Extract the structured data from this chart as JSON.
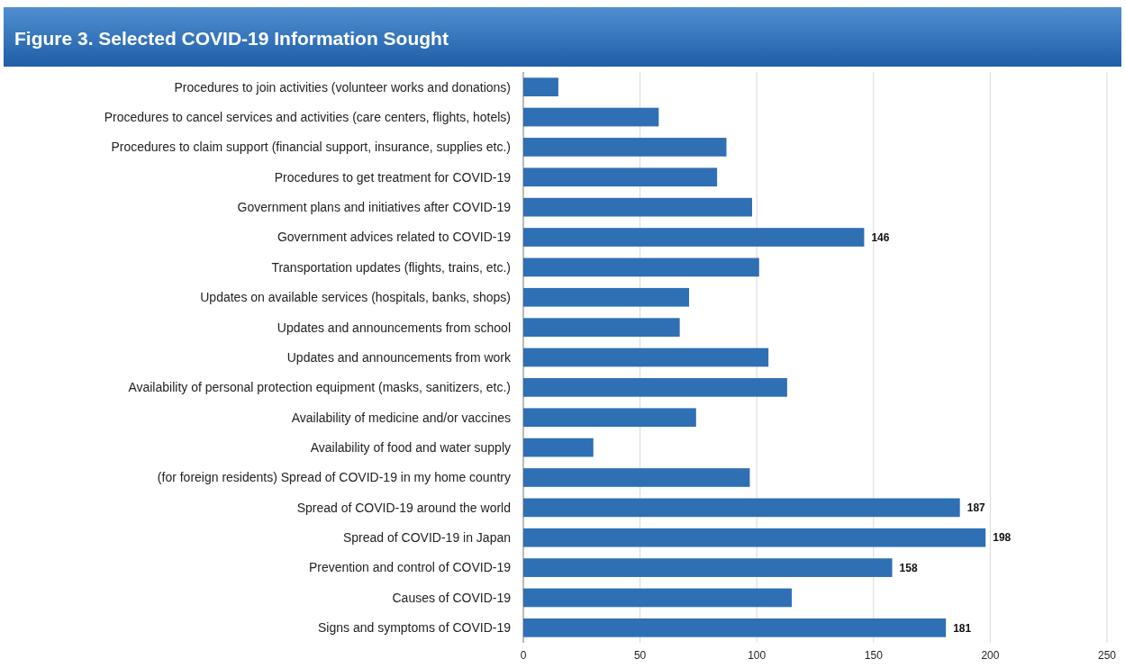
{
  "chart_data": {
    "type": "bar",
    "orientation": "horizontal",
    "title": "Figure 3. Selected COVID-19 Information Sought",
    "categories": [
      "Procedures to join activities (volunteer works and donations)",
      "Procedures to cancel services and activities (care centers, flights, hotels)",
      "Procedures to claim support (financial support, insurance, supplies etc.)",
      "Procedures to get treatment for COVID-19",
      "Government plans and initiatives after COVID-19",
      "Government advices related to COVID-19",
      "Transportation updates (flights, trains, etc.)",
      "Updates on available services (hospitals, banks, shops)",
      "Updates and announcements from school",
      "Updates and announcements from work",
      "Availability of personal protection equipment (masks, sanitizers, etc.)",
      "Availability of medicine and/or vaccines",
      "Availability of food and water supply",
      "(for foreign residents) Spread of COVID-19 in my home country",
      "Spread of COVID-19 around the world",
      "Spread of COVID-19 in Japan",
      "Prevention and control of COVID-19",
      "Causes of COVID-19",
      "Signs and symptoms of COVID-19"
    ],
    "values": [
      15,
      58,
      87,
      83,
      98,
      146,
      101,
      71,
      67,
      105,
      113,
      74,
      30,
      97,
      187,
      198,
      158,
      115,
      181
    ],
    "value_labels": [
      null,
      null,
      null,
      null,
      null,
      "146",
      null,
      null,
      null,
      null,
      null,
      null,
      null,
      null,
      "187",
      "198",
      "158",
      null,
      "181"
    ],
    "color": "#2f6fb4",
    "xlim": [
      0,
      250
    ],
    "xticks": [
      0,
      50,
      100,
      150,
      200,
      250
    ],
    "grid": "x"
  }
}
